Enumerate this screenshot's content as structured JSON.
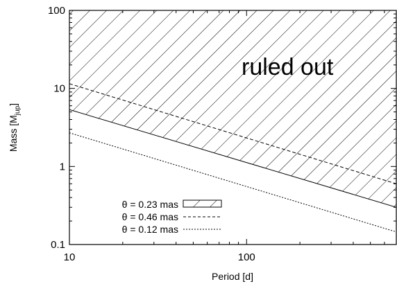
{
  "chart_data": {
    "type": "line",
    "title": "",
    "xlabel": "Period [d]",
    "ylabel_main": "Mass [M",
    "ylabel_sub": "jup",
    "ylabel_close": "]",
    "xscale": "log",
    "yscale": "log",
    "xlim": [
      10,
      700
    ],
    "ylim": [
      0.1,
      100
    ],
    "x_ticks": [
      10,
      100
    ],
    "x_tick_labels": [
      "10",
      "100"
    ],
    "y_ticks": [
      0.1,
      1,
      10,
      100
    ],
    "y_tick_labels": [
      "0.1",
      "1",
      "10",
      "100"
    ],
    "grid": false,
    "legend_position": "bottom-left",
    "annotation": "ruled out",
    "series": [
      {
        "name": "θ = 0.23 mas",
        "style": "solid-hatched-above",
        "x": [
          10,
          700
        ],
        "y": [
          5.35,
          0.3
        ]
      },
      {
        "name": "θ = 0.46 mas",
        "style": "dashed",
        "x": [
          10,
          700
        ],
        "y": [
          11.5,
          0.6
        ]
      },
      {
        "name": "θ = 0.12 mas",
        "style": "dotted",
        "x": [
          10,
          700
        ],
        "y": [
          2.7,
          0.145
        ]
      }
    ]
  }
}
